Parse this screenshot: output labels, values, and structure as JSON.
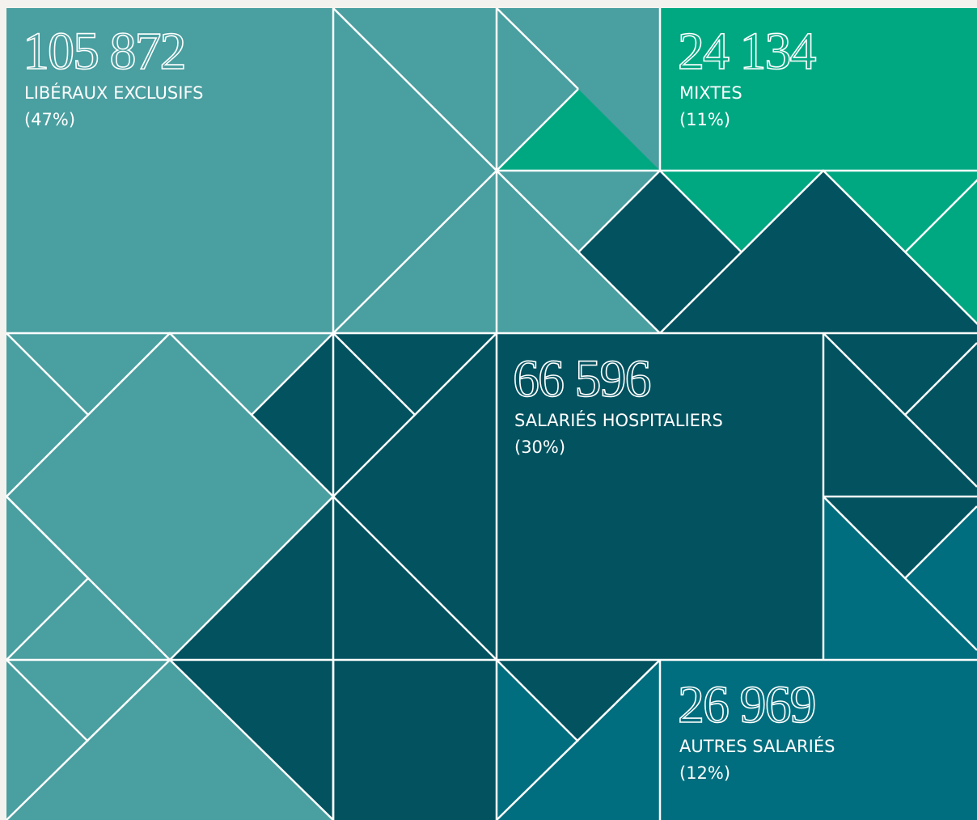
{
  "blocks": [
    {
      "value": "105 872",
      "label": "LIBÉRAUX EXCLUSIFS",
      "share": "(47%)"
    },
    {
      "value": "24 134",
      "label": "MIXTES",
      "share": "(11%)"
    },
    {
      "value": "66 596",
      "label": "SALARIÉS HOSPITALIERS",
      "share": "(30%)"
    },
    {
      "value": "26 969",
      "label": "AUTRES SALARIÉS",
      "share": "(12%)"
    }
  ]
}
